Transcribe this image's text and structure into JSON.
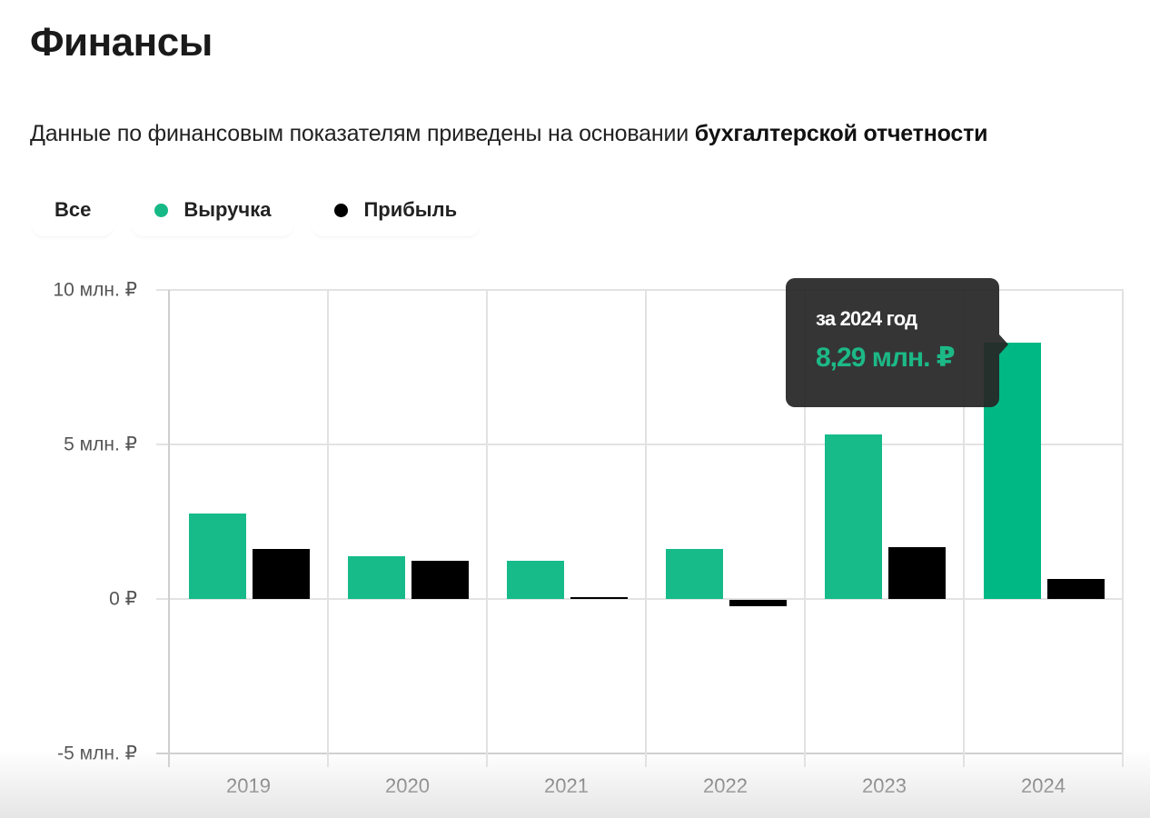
{
  "page": {
    "title": "Финансы",
    "subtitle_regular": "Данные по финансовым показателям приведены на основании ",
    "subtitle_bold": "бухгалтерской отчетности"
  },
  "filters": [
    {
      "label": "Все",
      "dot_color": null
    },
    {
      "label": "Выручка",
      "dot_color": "#16b985"
    },
    {
      "label": "Прибыль",
      "dot_color": "#000000"
    }
  ],
  "colors": {
    "revenue": "#16bb89",
    "revenue_active": "#00b884",
    "profit": "#000000",
    "tooltip_bg": "#262626",
    "tooltip_value": "#1cb986"
  },
  "tooltip": {
    "period": "за 2024 год",
    "value": "8,29 млн. ₽"
  },
  "chart_data": {
    "type": "bar",
    "title": "Финансы",
    "xlabel": "",
    "ylabel": "",
    "categories": [
      "2019",
      "2020",
      "2021",
      "2022",
      "2023",
      "2024"
    ],
    "series": [
      {
        "name": "Выручка",
        "values": [
          2.76,
          1.38,
          1.24,
          1.62,
          5.32,
          8.29
        ]
      },
      {
        "name": "Прибыль",
        "values": [
          1.62,
          1.24,
          0.05,
          -0.2,
          1.68,
          0.65
        ]
      }
    ],
    "units": "млн. ₽",
    "ylim": [
      -5,
      10
    ],
    "yticks": [
      10,
      5,
      0,
      -5
    ],
    "ytick_labels": [
      "10 млн. ₽",
      "5 млн. ₽",
      "0 ₽",
      "-5 млн. ₽"
    ],
    "grid": true,
    "legend": [
      "Выручка",
      "Прибыль"
    ],
    "legend_position": "top-left",
    "annotation": "за 2024 год — 8,29 млн. ₽"
  }
}
